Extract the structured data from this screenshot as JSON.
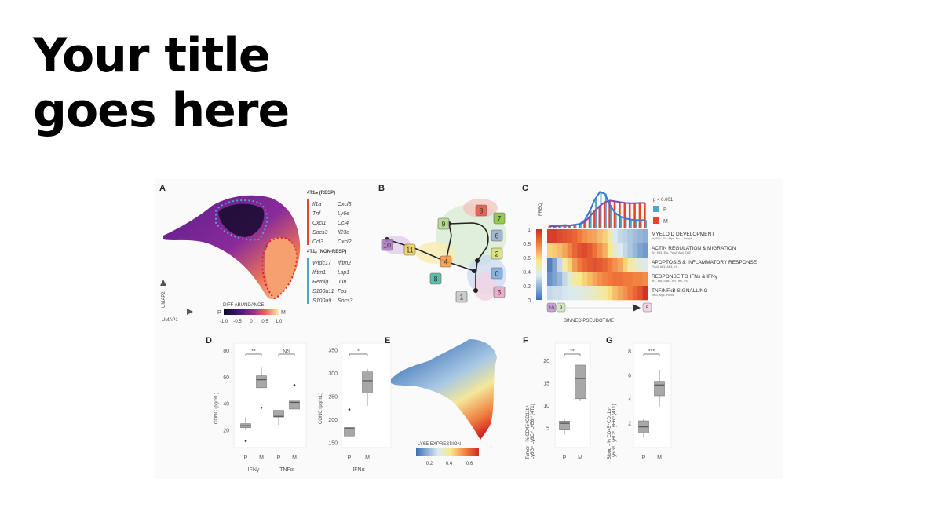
{
  "slide": {
    "title_line1": "Your title",
    "title_line2": "goes here"
  },
  "panels": {
    "A": {
      "label": "A",
      "resp_title": "4T1ₘ (RESP)",
      "resp_genes": [
        [
          "Il1a",
          "Cxcl3"
        ],
        [
          "Tnf",
          "Ly6e"
        ],
        [
          "Cxcl1",
          "Ccl4"
        ],
        [
          "Socs3",
          "Il23a"
        ],
        [
          "Ccl3",
          "Cxcl2"
        ]
      ],
      "nonresp_title": "4T1ₚ (NON-RESP)",
      "nonresp_genes": [
        [
          "Wfdc17",
          "Ifitm2"
        ],
        [
          "Ifitm1",
          "Lsp1"
        ],
        [
          "Retnlg",
          "Jun"
        ],
        [
          "S100a11",
          "Fos"
        ],
        [
          "S100a9",
          "Socs3"
        ]
      ],
      "colorbar_title": "DIFF ABUNDANCE",
      "colorbar_low": "P",
      "colorbar_high": "M",
      "colorbar_ticks": [
        "-1.0",
        "-0.5",
        "0",
        "0.5",
        "1.0"
      ],
      "axis_x": "UMAP1",
      "axis_y": "UMAP2",
      "colors": {
        "resp": "#e8412c",
        "nonresp": "#4aa8c0"
      }
    },
    "B": {
      "label": "B",
      "nodes": [
        {
          "id": "3",
          "color": "#e85a4a"
        },
        {
          "id": "7",
          "color": "#8cc63f"
        },
        {
          "id": "9",
          "color": "#b8d98a"
        },
        {
          "id": "6",
          "color": "#9bb0d0"
        },
        {
          "id": "2",
          "color": "#d9e27a"
        },
        {
          "id": "10",
          "color": "#b07cc6"
        },
        {
          "id": "11",
          "color": "#f2d45a"
        },
        {
          "id": "4",
          "color": "#f2a044"
        },
        {
          "id": "0",
          "color": "#7fb0e0"
        },
        {
          "id": "8",
          "color": "#4cb8a0"
        },
        {
          "id": "1",
          "color": "#c8c8c8"
        },
        {
          "id": "5",
          "color": "#e8a8c8"
        }
      ]
    },
    "C": {
      "label": "C",
      "freq_label": "FREQ",
      "pvalue": "p < 0.001",
      "legend": [
        {
          "label": "P",
          "color": "#4aa8d0"
        },
        {
          "label": "M",
          "color": "#e8412c"
        }
      ],
      "colorbar_ticks": [
        "1",
        "0.8",
        "0.6",
        "0.4",
        "0.2",
        "0"
      ],
      "rows": [
        {
          "title": "MYELOID DEVELOPMENT",
          "genes": "Irf, Elf1, Ets, Myc, Pu.1, Cebpb"
        },
        {
          "title": "ACTIN REGULATION & MIGRATION",
          "genes": "Srf, Elf1, Ets, Pou2, Ap4, Tal2"
        },
        {
          "title": "APOPTOSIS & INFLAMMATORY RESPONSE",
          "genes": "Pou3, Atf1, Atf3, Irf1"
        },
        {
          "title": "RESPONSE TO IFNs & IFNγ",
          "genes": "Irf1, Irf8, Stat1, Irf7, Irf2, Irf3"
        },
        {
          "title": "TNF/NFκB SIGNALLING",
          "genes": "Nfil3, Myc, Pknox"
        }
      ],
      "heatmap": [
        [
          0.95,
          0.95,
          0.92,
          0.9,
          0.88,
          0.85,
          0.8,
          0.75,
          0.72,
          0.7,
          0.65,
          0.6,
          0.5,
          0.35,
          0.3,
          0.28,
          0.25,
          0.22,
          0.2,
          0.18
        ],
        [
          0.6,
          0.62,
          0.65,
          0.7,
          0.78,
          0.85,
          0.9,
          0.92,
          0.88,
          0.82,
          0.75,
          0.68,
          0.55,
          0.42,
          0.35,
          0.3,
          0.25,
          0.2,
          0.15,
          0.12
        ],
        [
          0.05,
          0.15,
          0.3,
          0.5,
          0.6,
          0.72,
          0.8,
          0.85,
          0.88,
          0.9,
          0.88,
          0.85,
          0.8,
          0.75,
          0.7,
          0.6,
          0.5,
          0.45,
          0.4,
          0.38
        ],
        [
          0.1,
          0.15,
          0.2,
          0.3,
          0.4,
          0.5,
          0.55,
          0.6,
          0.65,
          0.7,
          0.75,
          0.78,
          0.8,
          0.82,
          0.82,
          0.8,
          0.8,
          0.78,
          0.78,
          0.76
        ],
        [
          0.3,
          0.32,
          0.32,
          0.34,
          0.35,
          0.36,
          0.38,
          0.4,
          0.42,
          0.45,
          0.48,
          0.52,
          0.58,
          0.65,
          0.7,
          0.75,
          0.8,
          0.85,
          0.9,
          0.98
        ]
      ],
      "freq_P": [
        0.05,
        0.06,
        0.06,
        0.07,
        0.06,
        0.08,
        0.1,
        0.2,
        0.45,
        0.75,
        0.95,
        0.9,
        0.6,
        0.4,
        0.3,
        0.25,
        0.22,
        0.2,
        0.2,
        0.2
      ],
      "freq_M": [
        0.04,
        0.04,
        0.05,
        0.05,
        0.06,
        0.07,
        0.1,
        0.15,
        0.3,
        0.45,
        0.58,
        0.68,
        0.72,
        0.7,
        0.68,
        0.66,
        0.65,
        0.65,
        0.66,
        0.66
      ],
      "start_badges": [
        "10",
        "9"
      ],
      "end_badge": "5",
      "xlabel": "BINNED PSEUDOTIME"
    },
    "D": {
      "label": "D",
      "ylabel": "CONC (pg/mL)",
      "left": {
        "ylim": [
          10,
          82
        ],
        "yticks": [
          "20",
          "40",
          "60",
          "80"
        ],
        "ytick_values": [
          20,
          40,
          60,
          80
        ],
        "groups": [
          "IFNγ",
          "TNFα"
        ],
        "sig": [
          "**",
          "NS"
        ],
        "boxes": [
          {
            "cat": "P",
            "q1": 22,
            "median": 23.5,
            "q3": 25,
            "lo": 20,
            "hi": 30,
            "outliers": [
              12
            ]
          },
          {
            "cat": "M",
            "q1": 52,
            "median": 58,
            "q3": 61,
            "lo": 52,
            "hi": 67,
            "outliers": [
              37
            ]
          },
          {
            "cat": "P",
            "q1": 30,
            "median": 30.5,
            "q3": 35,
            "lo": 24,
            "hi": 35,
            "outliers": []
          },
          {
            "cat": "M",
            "q1": 36,
            "median": 41,
            "q3": 42,
            "lo": 36,
            "hi": 42,
            "outliers": [
              54
            ]
          }
        ]
      },
      "right": {
        "ylim": [
          145,
          355
        ],
        "yticks": [
          "150",
          "200",
          "250",
          "300",
          "350"
        ],
        "ytick_values": [
          150,
          200,
          250,
          300,
          350
        ],
        "groups": [
          "IFNα"
        ],
        "sig": [
          "*"
        ],
        "boxes": [
          {
            "cat": "P",
            "q1": 165,
            "median": 182,
            "q3": 183,
            "lo": 165,
            "hi": 183,
            "outliers": [
              222
            ]
          },
          {
            "cat": "M",
            "q1": 258,
            "median": 284,
            "q3": 303,
            "lo": 230,
            "hi": 310,
            "outliers": []
          }
        ]
      }
    },
    "E": {
      "label": "E",
      "colorbar_title": "LY6E EXPRESSION",
      "colorbar_ticks": [
        "0.2",
        "0.4",
        "0.6"
      ]
    },
    "F": {
      "label": "F",
      "ylabel_line1": "Tumor - % CD45⁺CD11b⁺",
      "ylabel_line2": "Ly6Gˡᵒ Ly6Cʰⁱ LyE6ʰⁱ (4T1)",
      "ylim": [
        2,
        22.5
      ],
      "yticks": [
        "5",
        "10",
        "15",
        "20"
      ],
      "ytick_values": [
        5,
        10,
        15,
        20
      ],
      "sig": "**",
      "boxes": [
        {
          "cat": "P",
          "q1": 4.5,
          "median": 6,
          "q3": 6.5,
          "lo": 3.5,
          "hi": 7,
          "outliers": []
        },
        {
          "cat": "M",
          "q1": 11.5,
          "median": 16,
          "q3": 19,
          "lo": 11,
          "hi": 19,
          "outliers": []
        }
      ]
    },
    "G": {
      "label": "G",
      "ylabel_line1": "Blood - % CD45⁺CD11b⁺",
      "ylabel_line2": "Ly6Gˡᵒ Ly6Cʰⁱ LyE6ʰⁱ (4T1)",
      "ylim": [
        0.3,
        8.3
      ],
      "yticks": [
        "2",
        "4",
        "6",
        "8"
      ],
      "ytick_values": [
        2,
        4,
        6,
        8
      ],
      "sig": "***",
      "boxes": [
        {
          "cat": "P",
          "q1": 1.2,
          "median": 1.7,
          "q3": 2.2,
          "lo": 0.8,
          "hi": 2.4,
          "outliers": []
        },
        {
          "cat": "M",
          "q1": 4.3,
          "median": 5.2,
          "q3": 5.5,
          "lo": 3.4,
          "hi": 6.5,
          "outliers": []
        }
      ]
    }
  }
}
